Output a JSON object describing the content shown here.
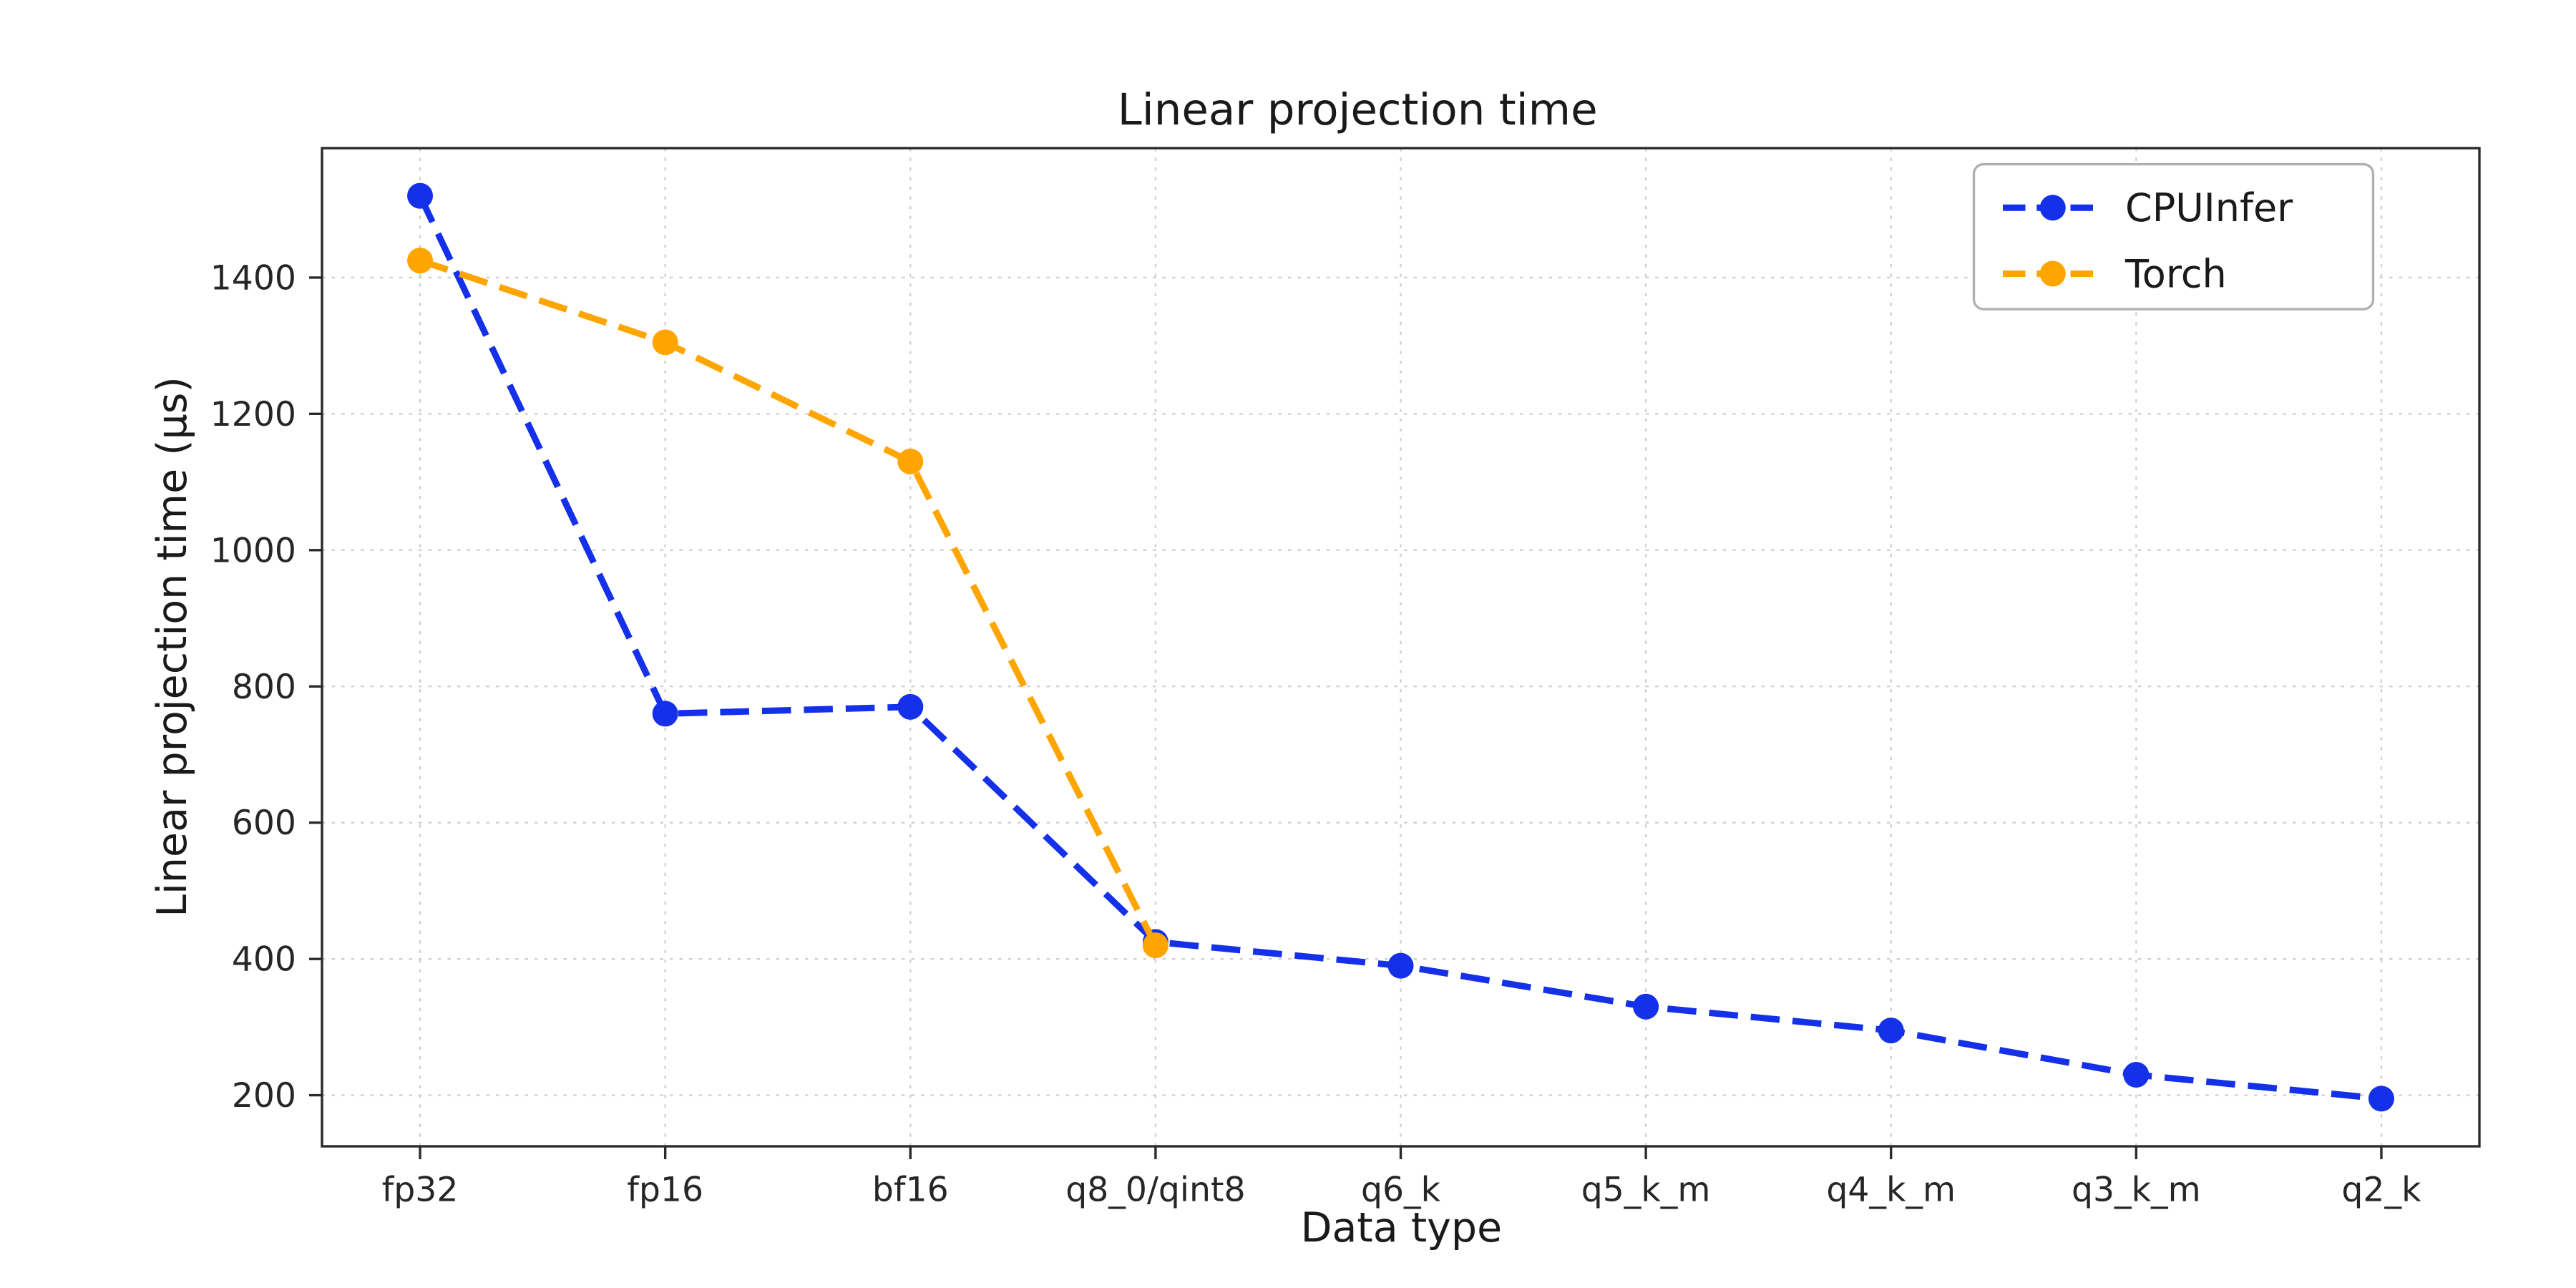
{
  "figure": {
    "title": "Linear projection time",
    "xlabel": "Data type",
    "ylabel": "Linear projection time (µs)"
  },
  "chart_data": {
    "type": "line",
    "title": "Linear projection time",
    "xlabel": "Data type",
    "ylabel": "Linear projection time (µs)",
    "categories": [
      "fp32",
      "fp16",
      "bf16",
      "q8_0/qint8",
      "q6_k",
      "q5_k_m",
      "q4_k_m",
      "q3_k_m",
      "q2_k"
    ],
    "series": [
      {
        "name": "CPUInfer",
        "color": "#1430e8",
        "values": [
          1520,
          760,
          770,
          425,
          390,
          330,
          295,
          230,
          195
        ]
      },
      {
        "name": "Torch",
        "color": "#ffa500",
        "values": [
          1425,
          1305,
          1130,
          420,
          null,
          null,
          null,
          null,
          null
        ]
      }
    ],
    "yticks": [
      200,
      400,
      600,
      800,
      1000,
      1200,
      1400
    ],
    "ylim": [
      125,
      1590
    ],
    "grid": true,
    "grid_color": "#c9c9c9",
    "frame_color": "#2a2a2a",
    "tick_label_color": "#262626",
    "line_style": "dashed",
    "marker": "circle",
    "legend_position": "upper right",
    "legend_labels": [
      "CPUInfer",
      "Torch"
    ]
  }
}
